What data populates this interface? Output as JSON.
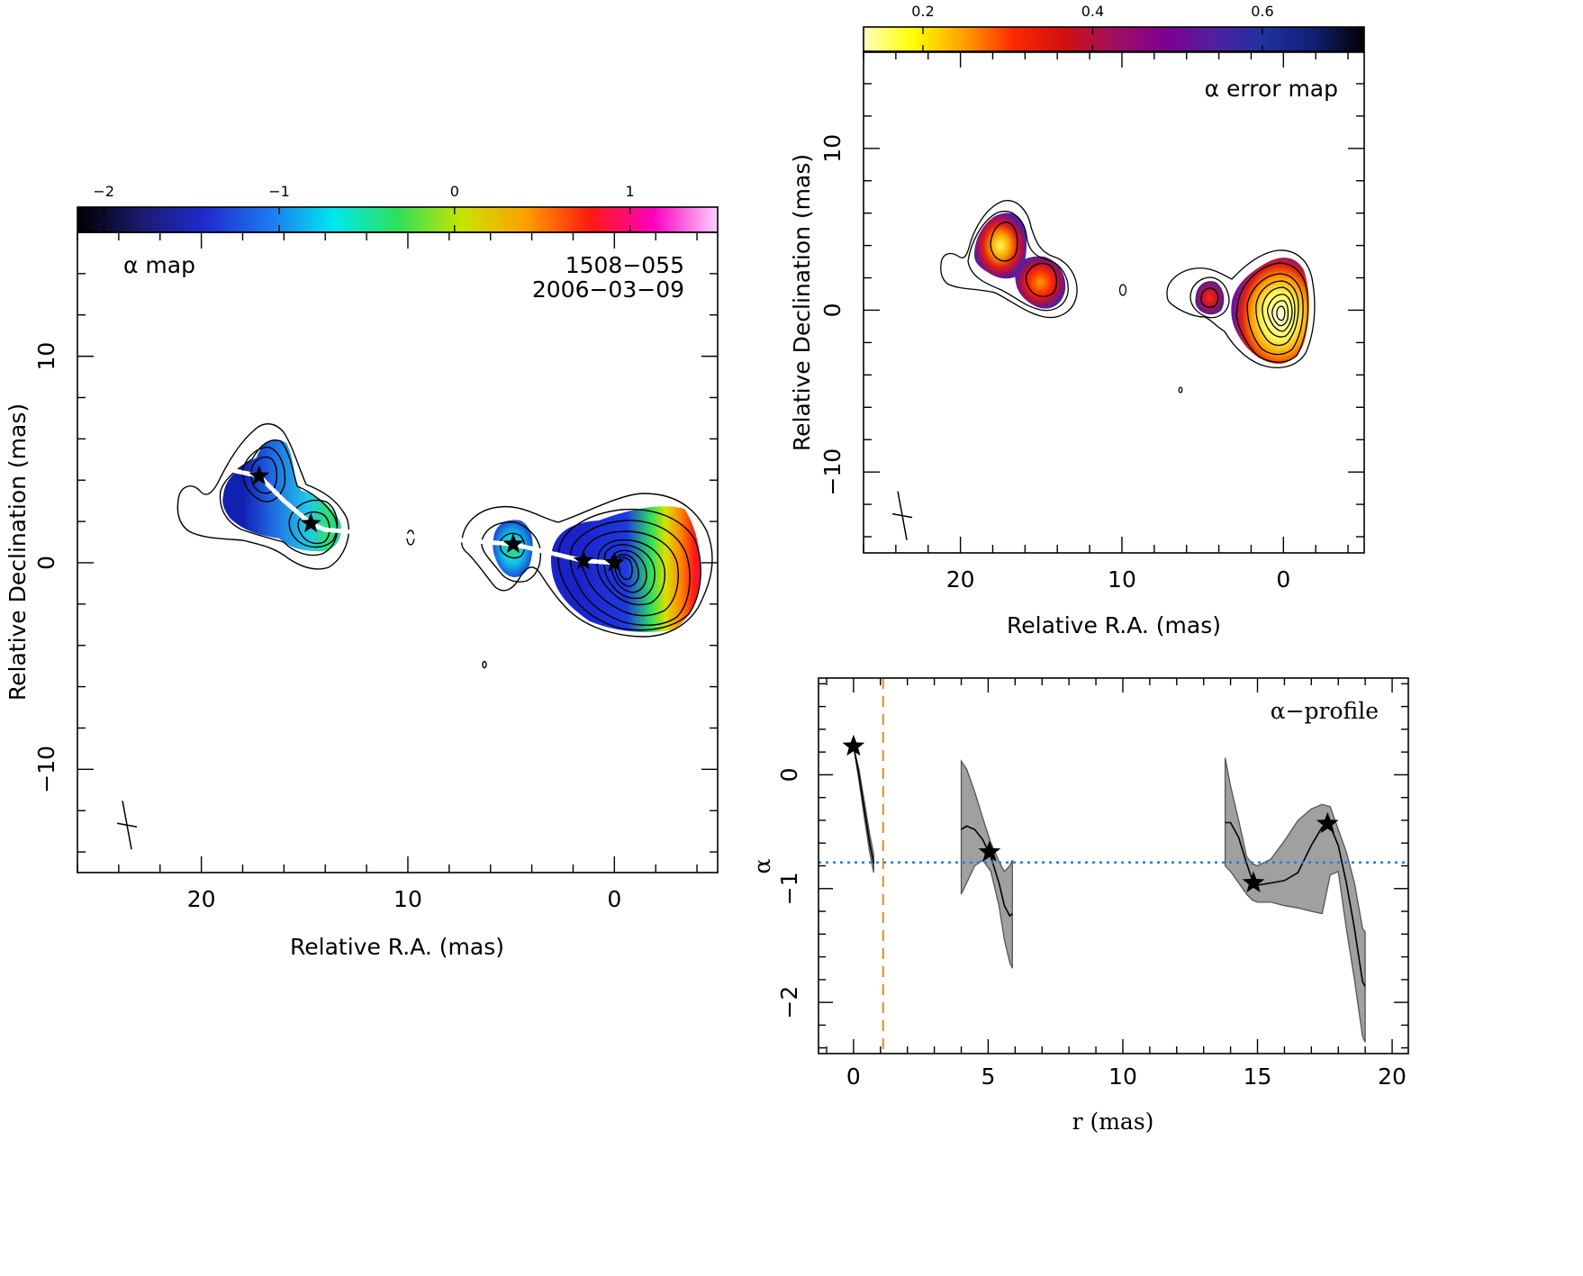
{
  "chart_data": [
    {
      "id": "alpha-map",
      "type": "heatmap",
      "title": "α map",
      "source": "1508−055",
      "epoch": "2006−03−09",
      "xlabel": "Relative R.A. (mas)",
      "ylabel": "Relative Declination (mas)",
      "xlim": [
        26,
        -5
      ],
      "ylim": [
        -15,
        16
      ],
      "xticks": [
        20,
        10,
        0
      ],
      "xtick_labels": [
        "20",
        "10",
        "0"
      ],
      "yticks": [
        -10,
        0,
        10
      ],
      "ytick_labels": [
        "−10",
        "0",
        "10"
      ],
      "colorbar": {
        "range": [
          -2.15,
          1.5
        ],
        "ticks": [
          -2,
          -1,
          0,
          1
        ],
        "tick_labels": [
          "−2",
          "−1",
          "0",
          "1"
        ],
        "stops": [
          "#000000",
          "#1a1a6e",
          "#1f2bd0",
          "#1e78f0",
          "#00e8f0",
          "#2ee05a",
          "#c8e400",
          "#ffa000",
          "#ff1a10",
          "#ff00c0",
          "#ffd0ff"
        ]
      },
      "components": [
        {
          "x": 0.0,
          "y": 0.0
        },
        {
          "x": 1.5,
          "y": 0.1
        },
        {
          "x": 4.9,
          "y": 0.9
        },
        {
          "x": 14.7,
          "y": 1.9
        },
        {
          "x": 17.2,
          "y": 4.2
        }
      ],
      "ridge": [
        [
          0.0,
          0.0
        ],
        [
          1.5,
          0.1
        ],
        [
          4.9,
          0.9
        ],
        [
          14.0,
          1.6
        ],
        [
          14.7,
          1.9
        ],
        [
          16.0,
          3.0
        ],
        [
          17.2,
          4.2
        ],
        [
          18.6,
          4.5
        ]
      ],
      "beam_center": [
        23.6,
        -12.7
      ]
    },
    {
      "id": "alpha-error-map",
      "type": "heatmap",
      "title": "α error map",
      "xlabel": "Relative R.A. (mas)",
      "ylabel": "Relative Declination (mas)",
      "xlim": [
        26,
        -5
      ],
      "ylim": [
        -15,
        16
      ],
      "xticks": [
        20,
        10,
        0
      ],
      "xtick_labels": [
        "20",
        "10",
        "0"
      ],
      "yticks": [
        -10,
        0,
        10
      ],
      "ytick_labels": [
        "−10",
        "0",
        "10"
      ],
      "colorbar": {
        "range": [
          0.13,
          0.72
        ],
        "ticks": [
          0.2,
          0.4,
          0.6
        ],
        "tick_labels": [
          "0.2",
          "0.4",
          "0.6"
        ],
        "stops": [
          "#ffffc0",
          "#ffff00",
          "#ffa000",
          "#ff2800",
          "#d01010",
          "#a01060",
          "#800090",
          "#5020a0",
          "#2030a0",
          "#102070",
          "#000000"
        ]
      },
      "beam_center": [
        23.6,
        -12.7
      ]
    },
    {
      "id": "alpha-profile",
      "type": "line",
      "title": "α−profile",
      "xlabel": "r (mas)",
      "ylabel": "α",
      "xlim": [
        -1.3,
        20.6
      ],
      "ylim": [
        -2.45,
        0.85
      ],
      "xticks": [
        0,
        5,
        10,
        15,
        20
      ],
      "xtick_labels": [
        "0",
        "5",
        "10",
        "15",
        "20"
      ],
      "yticks": [
        -2,
        -1,
        0
      ],
      "ytick_labels": [
        "−2",
        "−1",
        "0"
      ],
      "reference_line_y": -0.77,
      "vertical_line_x": 1.1,
      "segments": [
        {
          "x": [
            0.0,
            0.2,
            0.4,
            0.6,
            0.75
          ],
          "y": [
            0.25,
            0.0,
            -0.3,
            -0.6,
            -0.78
          ],
          "lower": [
            0.25,
            -0.05,
            -0.37,
            -0.68,
            -0.86
          ],
          "upper": [
            0.25,
            0.05,
            -0.23,
            -0.52,
            -0.7
          ]
        },
        {
          "x": [
            4.0,
            4.2,
            4.5,
            4.8,
            5.1,
            5.4,
            5.6,
            5.8,
            5.9
          ],
          "y": [
            -0.48,
            -0.45,
            -0.48,
            -0.57,
            -0.72,
            -0.95,
            -1.15,
            -1.24,
            -1.22
          ],
          "lower": [
            -1.05,
            -0.95,
            -0.8,
            -0.75,
            -0.85,
            -1.15,
            -1.45,
            -1.65,
            -1.7
          ],
          "upper": [
            0.12,
            0.05,
            -0.15,
            -0.38,
            -0.6,
            -0.76,
            -0.85,
            -0.8,
            -0.75
          ]
        },
        {
          "x": [
            13.8,
            14.0,
            14.3,
            14.6,
            14.8,
            15.0,
            15.5,
            16.0,
            16.5,
            17.0,
            17.4,
            17.7,
            18.0,
            18.3,
            18.6,
            18.9,
            19.0
          ],
          "y": [
            -0.42,
            -0.42,
            -0.55,
            -0.78,
            -0.92,
            -0.97,
            -0.95,
            -0.93,
            -0.86,
            -0.62,
            -0.46,
            -0.45,
            -0.62,
            -0.95,
            -1.35,
            -1.82,
            -1.86
          ],
          "lower": [
            -0.8,
            -0.85,
            -0.95,
            -1.05,
            -1.1,
            -1.12,
            -1.12,
            -1.15,
            -1.17,
            -1.2,
            -1.22,
            -0.88,
            -0.85,
            -1.35,
            -1.8,
            -2.3,
            -2.35
          ],
          "upper": [
            0.15,
            -0.1,
            -0.4,
            -0.72,
            -0.78,
            -0.8,
            -0.74,
            -0.58,
            -0.4,
            -0.3,
            -0.26,
            -0.28,
            -0.48,
            -0.68,
            -0.95,
            -1.35,
            -1.38
          ]
        }
      ],
      "stars": [
        {
          "x": 0.0,
          "y": 0.25
        },
        {
          "x": 5.05,
          "y": -0.68
        },
        {
          "x": 14.85,
          "y": -0.95
        },
        {
          "x": 17.6,
          "y": -0.43
        }
      ]
    }
  ]
}
